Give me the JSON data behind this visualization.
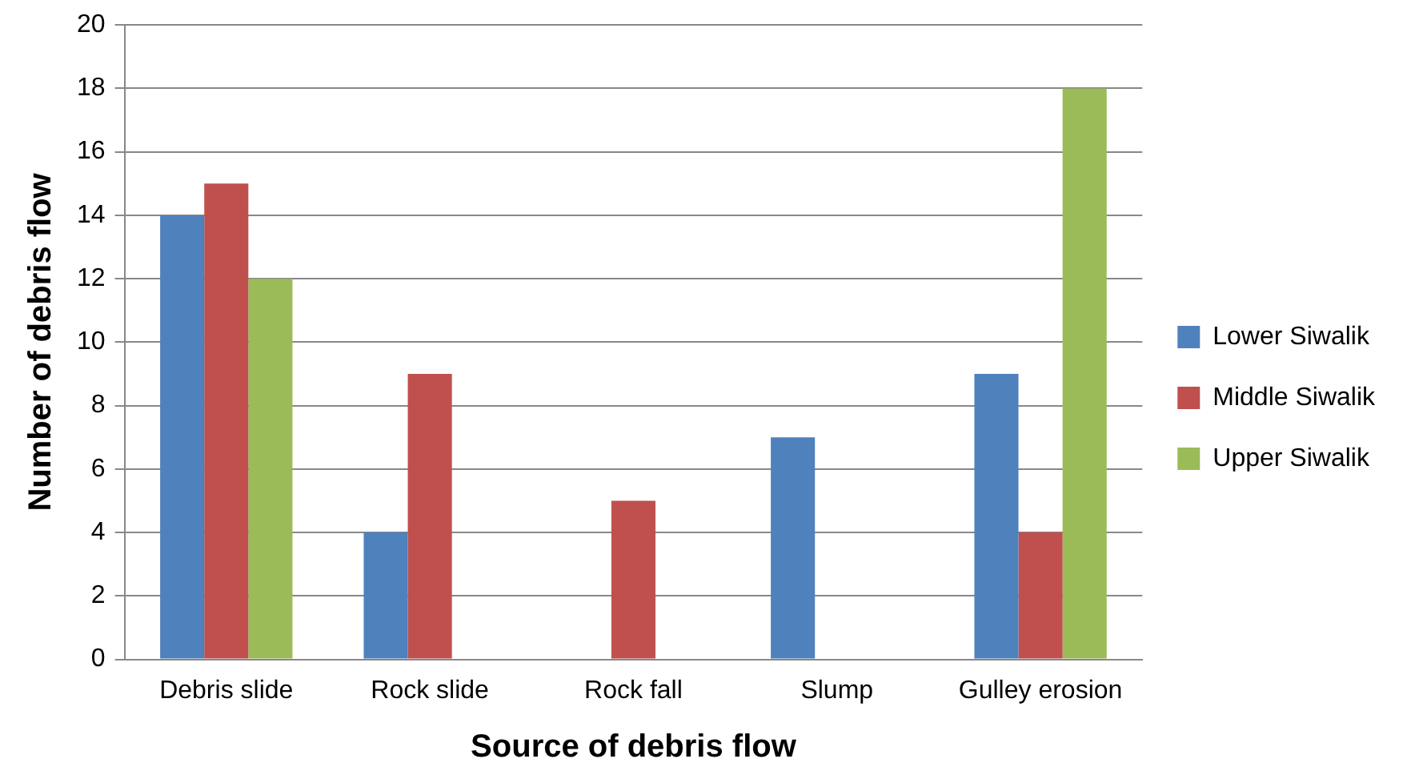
{
  "chart_data": {
    "type": "bar",
    "xlabel": "Source of debris flow",
    "ylabel": "Number of debris flow",
    "categories": [
      "Debris slide",
      "Rock slide",
      "Rock fall",
      "Slump",
      "Gulley erosion"
    ],
    "series": [
      {
        "name": "Lower Siwalik",
        "color": "#4f81bd",
        "values": [
          14,
          4,
          0,
          7,
          9
        ]
      },
      {
        "name": "Middle Siwalik",
        "color": "#c0504d",
        "values": [
          15,
          9,
          5,
          0,
          4
        ]
      },
      {
        "name": "Upper Siwalik",
        "color": "#9bbb59",
        "values": [
          12,
          0,
          0,
          0,
          18
        ]
      }
    ],
    "ylim": [
      0,
      20
    ],
    "yticks": [
      0,
      2,
      4,
      6,
      8,
      10,
      12,
      14,
      16,
      18,
      20
    ],
    "grid": "y",
    "legend": "right"
  }
}
